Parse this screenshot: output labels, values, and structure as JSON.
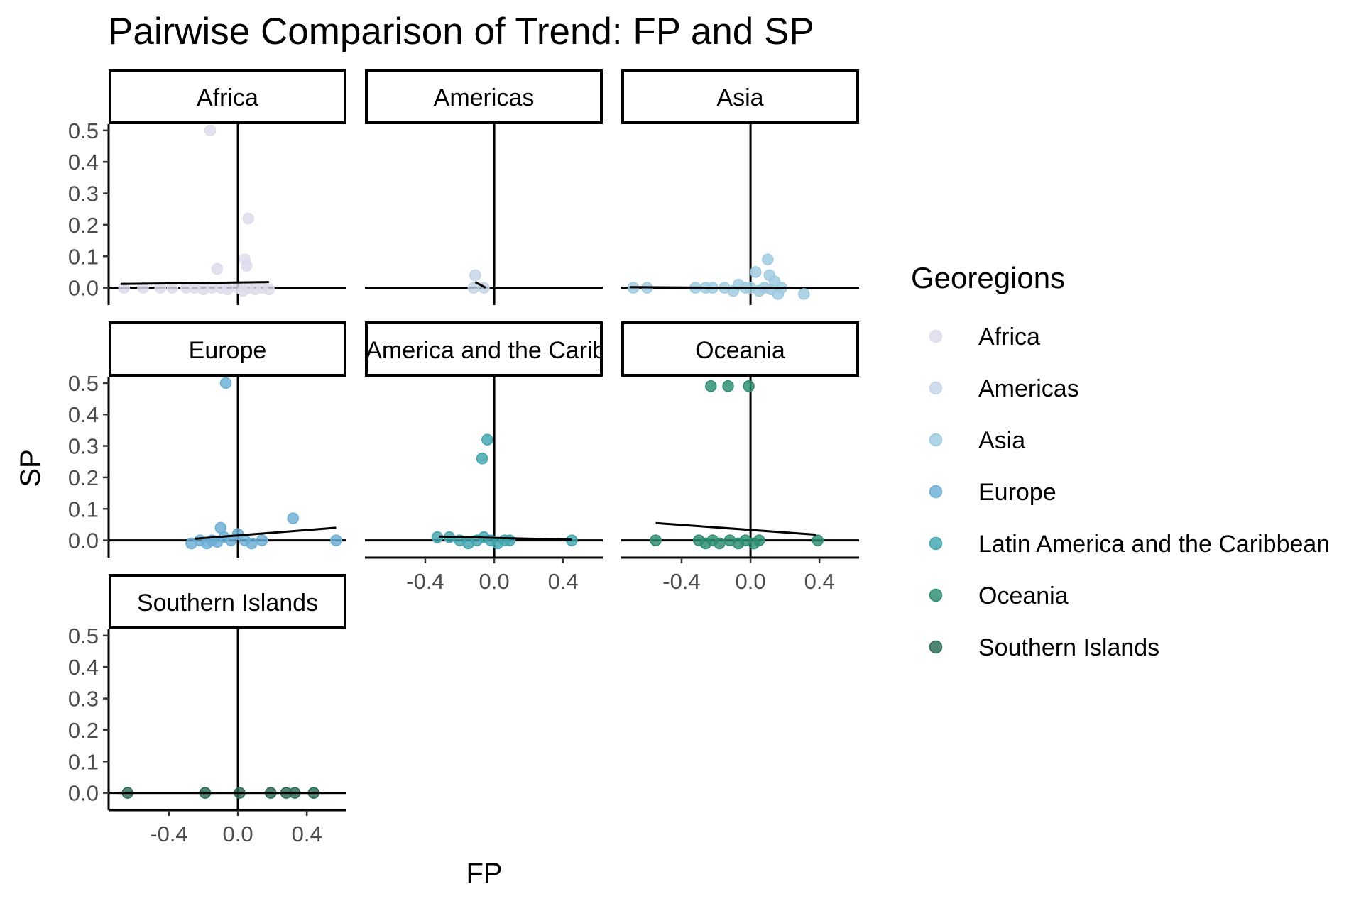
{
  "chart_data": {
    "type": "scatter",
    "title": "Pairwise Comparison of Trend: FP and SP",
    "xlabel": "FP",
    "ylabel": "SP",
    "xlim": [
      -0.75,
      0.63
    ],
    "ylim": [
      -0.055,
      0.52
    ],
    "x_ticks": [
      -0.4,
      0.0,
      0.4
    ],
    "x_tick_labels": [
      "-0.4",
      "0.0",
      "0.4"
    ],
    "y_ticks": [
      0.0,
      0.1,
      0.2,
      0.3,
      0.4,
      0.5
    ],
    "y_tick_labels": [
      "0.0",
      "0.1",
      "0.2",
      "0.3",
      "0.4",
      "0.5"
    ],
    "legend": {
      "title": "Georegions",
      "position": "right",
      "entries": [
        "Africa",
        "Americas",
        "Asia",
        "Europe",
        "Latin America and the Caribbean",
        "Oceania",
        "Southern Islands"
      ]
    },
    "facets": [
      {
        "label": "Africa",
        "color": "#dcdcec",
        "trend": [
          [
            -0.68,
            0.012
          ],
          [
            0.18,
            0.018
          ]
        ],
        "points": [
          [
            -0.16,
            0.5
          ],
          [
            0.06,
            0.22
          ],
          [
            -0.12,
            0.06
          ],
          [
            0.04,
            0.09
          ],
          [
            0.05,
            0.07
          ],
          [
            -0.66,
            0.0
          ],
          [
            -0.55,
            0.0
          ],
          [
            -0.45,
            0.0
          ],
          [
            -0.38,
            0.0
          ],
          [
            -0.3,
            0.0
          ],
          [
            -0.25,
            0.0
          ],
          [
            -0.2,
            -0.005
          ],
          [
            -0.15,
            0.0
          ],
          [
            -0.1,
            0.0
          ],
          [
            -0.06,
            -0.005
          ],
          [
            0.0,
            0.0
          ],
          [
            0.03,
            -0.01
          ],
          [
            0.06,
            0.0
          ],
          [
            0.1,
            -0.005
          ],
          [
            0.14,
            0.0
          ],
          [
            0.18,
            -0.005
          ]
        ]
      },
      {
        "label": "Americas",
        "color": "#c4d4e8",
        "trend": [
          [
            -0.11,
            0.018
          ],
          [
            -0.05,
            0.0
          ]
        ],
        "points": [
          [
            -0.11,
            0.04
          ],
          [
            -0.12,
            0.0
          ],
          [
            -0.06,
            0.0
          ]
        ]
      },
      {
        "label": "Asia",
        "color": "#9ecae1",
        "trend": [
          [
            -0.7,
            0.002
          ],
          [
            0.3,
            -0.002
          ]
        ],
        "points": [
          [
            0.1,
            0.09
          ],
          [
            0.03,
            0.05
          ],
          [
            0.11,
            0.04
          ],
          [
            0.14,
            0.02
          ],
          [
            -0.68,
            0.0
          ],
          [
            -0.6,
            0.0
          ],
          [
            -0.32,
            0.0
          ],
          [
            -0.26,
            0.0
          ],
          [
            -0.22,
            0.0
          ],
          [
            -0.15,
            0.0
          ],
          [
            -0.1,
            -0.01
          ],
          [
            -0.07,
            0.01
          ],
          [
            -0.03,
            0.0
          ],
          [
            0.0,
            0.0
          ],
          [
            0.05,
            -0.01
          ],
          [
            0.08,
            0.0
          ],
          [
            0.12,
            -0.005
          ],
          [
            0.16,
            -0.02
          ],
          [
            0.18,
            0.0
          ],
          [
            0.31,
            -0.02
          ]
        ]
      },
      {
        "label": "Europe",
        "color": "#6baed6",
        "trend": [
          [
            -0.25,
            0.005
          ],
          [
            0.57,
            0.04
          ]
        ],
        "points": [
          [
            -0.07,
            0.5
          ],
          [
            0.32,
            0.07
          ],
          [
            -0.1,
            0.04
          ],
          [
            -0.27,
            -0.01
          ],
          [
            -0.22,
            0.0
          ],
          [
            -0.18,
            -0.01
          ],
          [
            -0.15,
            0.0
          ],
          [
            -0.12,
            -0.005
          ],
          [
            -0.08,
            0.01
          ],
          [
            -0.04,
            0.0
          ],
          [
            0.0,
            0.02
          ],
          [
            0.04,
            0.0
          ],
          [
            0.08,
            -0.01
          ],
          [
            0.14,
            0.0
          ],
          [
            0.57,
            0.0
          ]
        ]
      },
      {
        "label": "Latin America and the Caribbean",
        "color": "#41a6b0",
        "trend": [
          [
            -0.32,
            0.012
          ],
          [
            0.45,
            0.002
          ]
        ],
        "points": [
          [
            -0.04,
            0.32
          ],
          [
            -0.07,
            0.26
          ],
          [
            -0.33,
            0.01
          ],
          [
            -0.26,
            0.01
          ],
          [
            -0.2,
            0.0
          ],
          [
            -0.15,
            -0.01
          ],
          [
            -0.1,
            0.0
          ],
          [
            -0.06,
            0.01
          ],
          [
            -0.02,
            0.0
          ],
          [
            0.02,
            -0.01
          ],
          [
            0.06,
            0.0
          ],
          [
            0.09,
            0.0
          ],
          [
            0.45,
            0.0
          ]
        ]
      },
      {
        "label": "Oceania",
        "color": "#2b8c72",
        "trend": [
          [
            -0.55,
            0.055
          ],
          [
            0.38,
            0.018
          ]
        ],
        "points": [
          [
            -0.23,
            0.49
          ],
          [
            -0.13,
            0.49
          ],
          [
            -0.01,
            0.49
          ],
          [
            -0.55,
            0.0
          ],
          [
            -0.3,
            0.0
          ],
          [
            -0.26,
            -0.01
          ],
          [
            -0.22,
            0.0
          ],
          [
            -0.18,
            -0.01
          ],
          [
            -0.12,
            0.0
          ],
          [
            -0.07,
            -0.01
          ],
          [
            -0.03,
            0.0
          ],
          [
            0.02,
            -0.01
          ],
          [
            0.05,
            0.0
          ],
          [
            0.39,
            0.0
          ]
        ]
      },
      {
        "label": "Southern Islands",
        "color": "#2a6a55",
        "trend": [
          [
            -0.7,
            0.0
          ],
          [
            0.63,
            0.0
          ]
        ],
        "points": [
          [
            -0.64,
            0.0
          ],
          [
            -0.19,
            0.0
          ],
          [
            0.01,
            0.0
          ],
          [
            0.19,
            0.0
          ],
          [
            0.28,
            0.0
          ],
          [
            0.33,
            0.0
          ],
          [
            0.44,
            0.0
          ]
        ]
      }
    ]
  }
}
